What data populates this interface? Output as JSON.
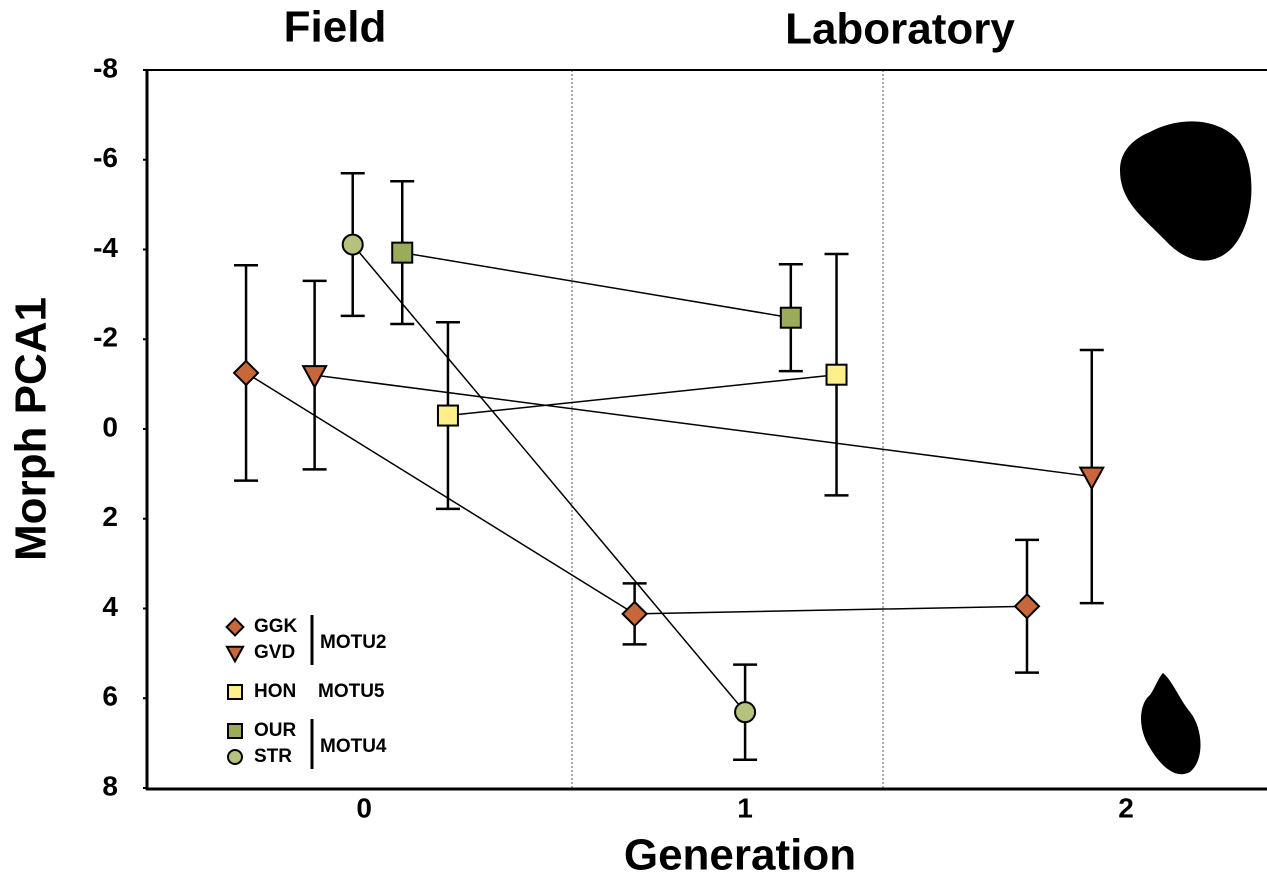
{
  "chart_data": {
    "type": "scatter",
    "x_label": "Generation",
    "y_label": "Morph PCA1",
    "annotations": [
      "Field",
      "Laboratory"
    ],
    "xlim": [
      -0.57,
      2.37
    ],
    "xticks": [
      0,
      1,
      2
    ],
    "ylim": [
      -8,
      8
    ],
    "yticks": [
      -8,
      -6,
      -4,
      -2,
      0,
      2,
      4,
      6,
      8
    ],
    "y_reversed": true,
    "connect_points": true,
    "series": [
      {
        "name": "GGK",
        "group": "MOTU2",
        "marker": "diamond",
        "color": "#c8673a",
        "x": [
          -0.31,
          0.71,
          1.74
        ],
        "values": [
          -1.25,
          4.12,
          3.95
        ],
        "errors": [
          2.4,
          0.68,
          1.48
        ]
      },
      {
        "name": "GVD",
        "group": "MOTU2",
        "marker": "triangle-down",
        "color": "#c8673a",
        "x": [
          -0.13,
          1.91
        ],
        "values": [
          -1.2,
          1.06
        ],
        "errors": [
          2.1,
          2.82
        ]
      },
      {
        "name": "HON",
        "group": "MOTU5",
        "marker": "square",
        "color": "#fdf08a",
        "x": [
          0.22,
          1.24
        ],
        "values": [
          -0.3,
          -1.21
        ],
        "errors": [
          2.08,
          2.69
        ]
      },
      {
        "name": "OUR",
        "group": "MOTU4",
        "marker": "square",
        "color": "#9aac5a",
        "x": [
          0.1,
          1.12
        ],
        "values": [
          -3.93,
          -2.48
        ],
        "errors": [
          1.59,
          1.19
        ]
      },
      {
        "name": "STR",
        "group": "MOTU4",
        "marker": "circle",
        "color": "#b5c27e",
        "x": [
          -0.03,
          1.0
        ],
        "values": [
          -4.11,
          6.31
        ],
        "errors": [
          1.59,
          1.06
        ]
      }
    ]
  }
}
